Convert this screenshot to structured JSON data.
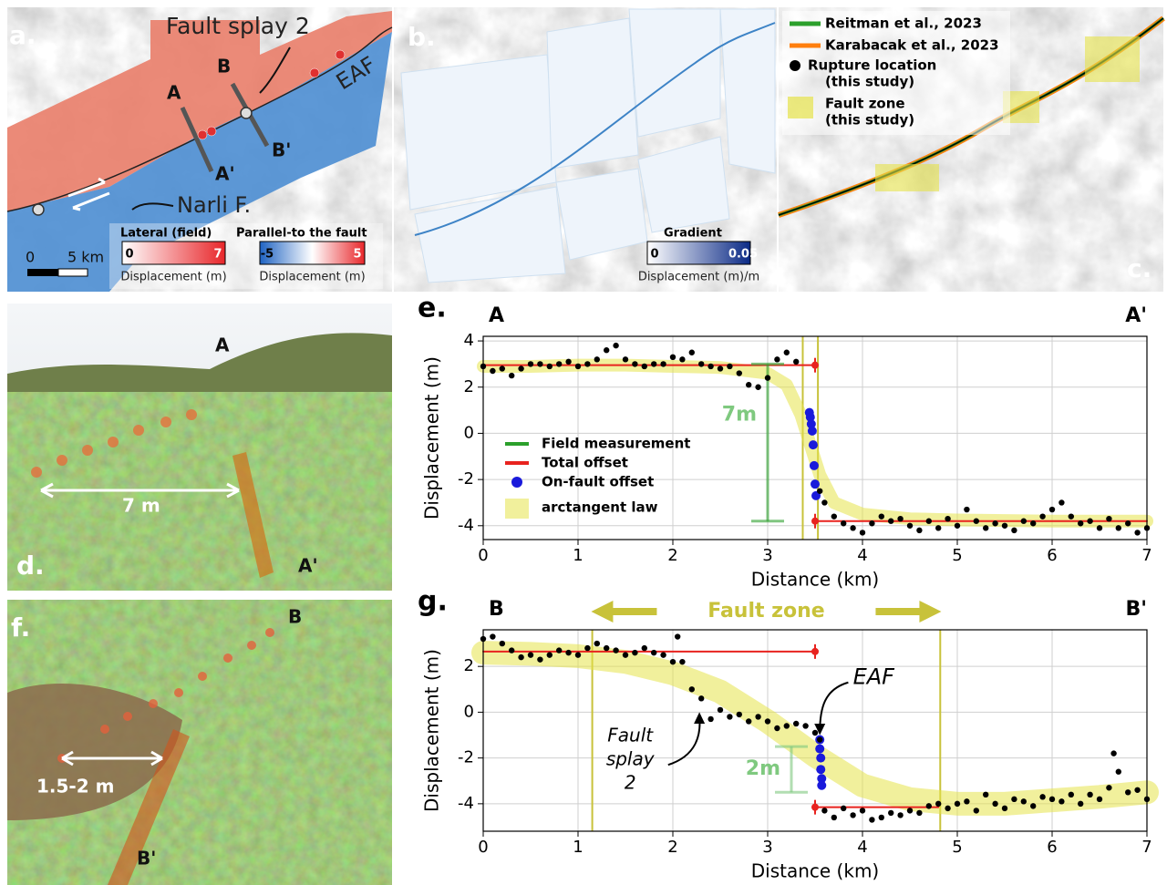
{
  "panels": {
    "a": {
      "label": "a.",
      "annotations": [
        "Fault splay 2",
        "B",
        "A",
        "EAF",
        "B'",
        "A'",
        "Narli F."
      ],
      "scale_bar": [
        0,
        {
          "value": 5,
          "label": "5 km"
        }
      ],
      "colorbars": [
        {
          "title": "Lateral (field)",
          "ticks": [
            0,
            7
          ],
          "label": "Displacement (m)",
          "colors": [
            "#ffffff",
            "#e8262a"
          ]
        },
        {
          "title": "Parallel-to the fault",
          "ticks": [
            -5,
            5
          ],
          "label": "Displacement (m)",
          "colors": [
            "#1f63c2",
            "#ffffff",
            "#e8262a"
          ]
        }
      ]
    },
    "b": {
      "label": "b.",
      "colorbar": {
        "title": "Gradient",
        "ticks": [
          0,
          0.05
        ],
        "label": "Displacement (m)/m",
        "colors": [
          "#ffffff",
          "#0b2a86"
        ]
      }
    },
    "c": {
      "label": "c.",
      "legend": [
        {
          "text": [
            "Reitman et al., 2023"
          ],
          "color": "#2ca02c"
        },
        {
          "text": [
            "Karabacak et al., 2023"
          ],
          "color": "#ff7f0e"
        },
        {
          "text": [
            "Rupture location",
            "(this study)"
          ],
          "color": "#000000"
        },
        {
          "text": [
            "Fault zone",
            "(this study)"
          ],
          "color": "#e6e34a"
        }
      ]
    },
    "d": {
      "label": "d.",
      "annotations": [
        "A",
        "7 m",
        "A'"
      ]
    },
    "f": {
      "label": "f.",
      "annotations": [
        "B",
        "1.5-2 m",
        "B'"
      ]
    }
  },
  "chart_data": [
    {
      "type": "scatter",
      "panel": "e.",
      "left_label": "A",
      "right_label": "A'",
      "xlabel": "Distance (km)",
      "ylabel": "Displacement (m)",
      "xlim": [
        0,
        7
      ],
      "ylim": [
        -4.6,
        4.2
      ],
      "xticks": [
        0,
        1,
        2,
        3,
        4,
        5,
        6,
        7
      ],
      "yticks": [
        -4,
        -2,
        0,
        2,
        4
      ],
      "grid": true,
      "legend": "center left",
      "fault_zone": {
        "x": [
          3.37,
          3.53
        ],
        "color": "#c8c23a"
      },
      "series": [
        {
          "name": "Field measurement",
          "style": "bar",
          "color": "#2ca02c",
          "label": "7m",
          "x": [
            3.0,
            3.0
          ],
          "values": [
            -3.8,
            3.0
          ]
        },
        {
          "name": "Total offset",
          "style": "line",
          "color": "#e8231f",
          "x": [
            0,
            3.5,
            null,
            3.5,
            7
          ],
          "values": [
            2.95,
            2.95,
            null,
            -3.8,
            -3.8
          ]
        },
        {
          "name": "On-fault offset",
          "style": "points",
          "color": "#1a1adb",
          "x": [
            3.44,
            3.45,
            3.46,
            3.47,
            3.48,
            3.49,
            3.5,
            3.51
          ],
          "values": [
            0.9,
            0.7,
            0.4,
            0.1,
            -0.5,
            -1.4,
            -2.2,
            -2.7
          ]
        },
        {
          "name": "arctangent law",
          "style": "band",
          "color": "#e6e34a",
          "x": [
            0,
            0.5,
            1,
            1.5,
            2,
            2.5,
            3,
            3.2,
            3.35,
            3.45,
            3.55,
            3.7,
            4,
            4.5,
            5,
            6,
            7
          ],
          "values": [
            2.9,
            2.9,
            2.95,
            2.95,
            2.9,
            2.85,
            2.6,
            2.1,
            0.8,
            -0.5,
            -1.8,
            -3.0,
            -3.5,
            -3.7,
            -3.75,
            -3.8,
            -3.8
          ]
        },
        {
          "style": "points",
          "color": "#000000",
          "x": [
            0,
            0.1,
            0.2,
            0.3,
            0.4,
            0.5,
            0.6,
            0.7,
            0.8,
            0.9,
            1.0,
            1.1,
            1.2,
            1.3,
            1.4,
            1.5,
            1.6,
            1.7,
            1.8,
            1.9,
            2.0,
            2.1,
            2.2,
            2.3,
            2.4,
            2.5,
            2.6,
            2.7,
            2.8,
            2.9,
            3.0,
            3.1,
            3.2,
            3.3,
            3.55,
            3.6,
            3.7,
            3.8,
            3.9,
            4.0,
            4.1,
            4.2,
            4.3,
            4.4,
            4.5,
            4.6,
            4.7,
            4.8,
            4.9,
            5.0,
            5.1,
            5.2,
            5.3,
            5.4,
            5.5,
            5.6,
            5.7,
            5.8,
            5.9,
            6.0,
            6.1,
            6.2,
            6.3,
            6.4,
            6.5,
            6.6,
            6.7,
            6.8,
            6.9,
            7.0
          ],
          "values": [
            2.9,
            2.7,
            2.8,
            2.5,
            2.8,
            3.0,
            3.0,
            2.9,
            3.0,
            3.1,
            2.9,
            3.0,
            3.2,
            3.6,
            3.8,
            3.2,
            3.0,
            2.9,
            3.0,
            3.0,
            3.3,
            3.2,
            3.5,
            3.0,
            2.9,
            2.8,
            2.9,
            2.6,
            2.1,
            2.0,
            2.4,
            3.2,
            3.5,
            3.1,
            -2.5,
            -3.0,
            -3.6,
            -3.9,
            -4.1,
            -4.3,
            -3.9,
            -3.6,
            -3.8,
            -3.7,
            -4.0,
            -4.2,
            -3.8,
            -4.1,
            -3.7,
            -4.0,
            -3.3,
            -3.8,
            -4.1,
            -3.9,
            -4.0,
            -4.2,
            -3.8,
            -3.9,
            -3.6,
            -3.3,
            -3.0,
            -3.6,
            -3.9,
            -3.8,
            -4.1,
            -3.7,
            -4.1,
            -3.9,
            -4.3,
            -4.1
          ]
        }
      ]
    },
    {
      "type": "scatter",
      "panel": "g.",
      "left_label": "B",
      "right_label": "B'",
      "xlabel": "Distance (km)",
      "ylabel": "Displacement (m)",
      "xlim": [
        0,
        7
      ],
      "ylim": [
        -5.2,
        3.6
      ],
      "xticks": [
        0,
        1,
        2,
        3,
        4,
        5,
        6,
        7
      ],
      "yticks": [
        -4,
        -2,
        0,
        2
      ],
      "grid": true,
      "fault_zone": {
        "x": [
          1.15,
          4.82
        ],
        "color": "#c8c23a",
        "label": "Fault zone"
      },
      "annotations": [
        {
          "text": [
            "EAF"
          ]
        },
        {
          "text": [
            "Fault",
            "splay",
            "2"
          ]
        }
      ],
      "series": [
        {
          "style": "band",
          "color": "#e6e34a",
          "x": [
            0,
            0.5,
            1,
            1.5,
            2,
            2.5,
            3,
            3.5,
            4,
            4.5,
            5,
            5.5,
            6,
            6.5,
            7
          ],
          "values": [
            2.6,
            2.55,
            2.45,
            2.2,
            1.7,
            0.9,
            -0.4,
            -1.9,
            -3.2,
            -3.8,
            -4.0,
            -4.0,
            -3.85,
            -3.7,
            -3.5
          ]
        },
        {
          "style": "line",
          "color": "#e8231f",
          "x": [
            0,
            3.5,
            null,
            3.5,
            4.8
          ],
          "values": [
            2.65,
            2.65,
            null,
            -4.15,
            -4.15
          ]
        },
        {
          "style": "bar",
          "color": "#7fc97f",
          "label": "2m",
          "x": [
            3.25,
            3.25
          ],
          "values": [
            -3.5,
            -1.5
          ]
        },
        {
          "style": "points",
          "color": "#1a1adb",
          "x": [
            3.55,
            3.55,
            3.56,
            3.56,
            3.57,
            3.57
          ],
          "values": [
            -1.2,
            -1.6,
            -2.0,
            -2.5,
            -2.9,
            -3.2
          ]
        },
        {
          "style": "points",
          "color": "#000000",
          "x": [
            0,
            0.1,
            0.2,
            0.3,
            0.4,
            0.5,
            0.6,
            0.7,
            0.8,
            0.9,
            1.0,
            1.1,
            1.2,
            1.3,
            1.4,
            1.5,
            1.6,
            1.7,
            1.8,
            1.9,
            2.0,
            2.05,
            2.1,
            2.2,
            2.3,
            2.4,
            2.5,
            2.6,
            2.7,
            2.8,
            2.9,
            3.0,
            3.1,
            3.2,
            3.3,
            3.4,
            3.5,
            3.55,
            3.6,
            3.7,
            3.8,
            3.9,
            4.0,
            4.1,
            4.2,
            4.3,
            4.4,
            4.5,
            4.6,
            4.7,
            4.8,
            4.9,
            5.0,
            5.1,
            5.2,
            5.3,
            5.4,
            5.5,
            5.6,
            5.7,
            5.8,
            5.9,
            6.0,
            6.1,
            6.2,
            6.3,
            6.4,
            6.5,
            6.6,
            6.65,
            6.7,
            6.8,
            6.9,
            7.0
          ],
          "values": [
            3.2,
            3.3,
            3.0,
            2.7,
            2.4,
            2.5,
            2.3,
            2.5,
            2.7,
            2.6,
            2.5,
            2.8,
            3.0,
            2.8,
            2.7,
            2.5,
            2.6,
            2.8,
            2.6,
            2.5,
            2.2,
            3.3,
            2.2,
            1.0,
            0.6,
            -0.3,
            0.1,
            -0.2,
            -0.1,
            -0.4,
            -0.2,
            -0.4,
            -0.7,
            -0.6,
            -0.5,
            -0.6,
            -0.9,
            -1.2,
            -4.3,
            -4.6,
            -4.2,
            -4.5,
            -4.3,
            -4.7,
            -4.6,
            -4.4,
            -4.5,
            -4.3,
            -4.4,
            -4.1,
            -4.0,
            -4.2,
            -4.0,
            -3.9,
            -4.3,
            -3.6,
            -4.0,
            -4.2,
            -3.8,
            -3.9,
            -4.1,
            -3.7,
            -3.8,
            -3.9,
            -3.6,
            -4.0,
            -3.6,
            -3.8,
            -3.3,
            -1.8,
            -2.6,
            -3.5,
            -3.4,
            -3.8
          ]
        }
      ]
    }
  ]
}
